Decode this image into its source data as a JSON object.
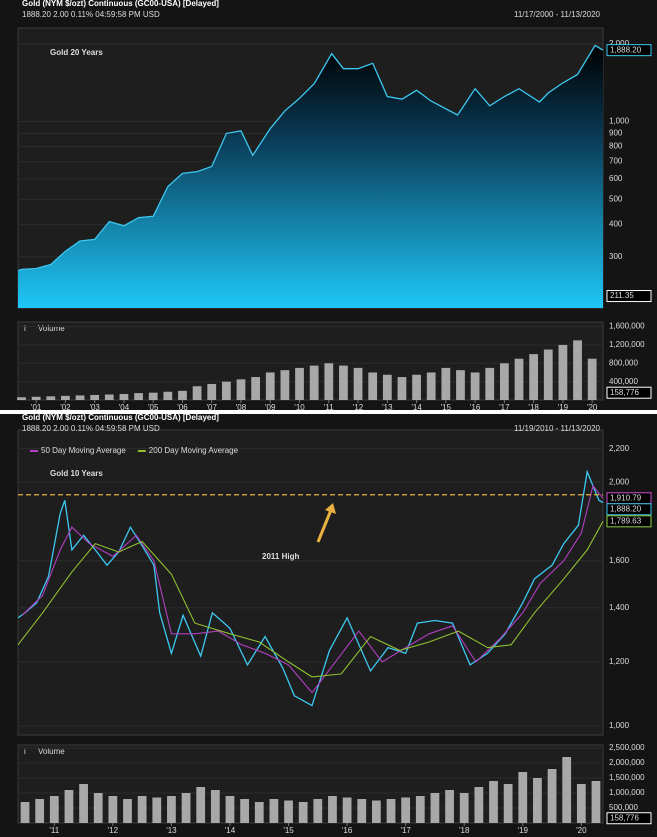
{
  "chart_data": [
    {
      "type": "area",
      "log": true,
      "grid": true,
      "header": {
        "name": "Gold (NYM $/ozt) Continuous (GC00-USA) [Delayed]",
        "quote": "1888.20   2.00   0.11%   04:59:58 PM   USD",
        "range": "11/17/2000 - 11/13/2020"
      },
      "title": "Gold 20 Years",
      "xlim": [
        2000.88,
        2020.87
      ],
      "xticks": [
        {
          "value": 2001.5,
          "label": "'01"
        },
        {
          "value": 2002.5,
          "label": "'02"
        },
        {
          "value": 2003.5,
          "label": "'03"
        },
        {
          "value": 2004.5,
          "label": "'04"
        },
        {
          "value": 2005.5,
          "label": "'05"
        },
        {
          "value": 2006.5,
          "label": "'06"
        },
        {
          "value": 2007.5,
          "label": "'07"
        },
        {
          "value": 2008.5,
          "label": "'08"
        },
        {
          "value": 2009.5,
          "label": "'09"
        },
        {
          "value": 2010.5,
          "label": "'10"
        },
        {
          "value": 2011.5,
          "label": "'11"
        },
        {
          "value": 2012.5,
          "label": "'12"
        },
        {
          "value": 2013.5,
          "label": "'13"
        },
        {
          "value": 2014.5,
          "label": "'14"
        },
        {
          "value": 2015.5,
          "label": "'15"
        },
        {
          "value": 2016.5,
          "label": "'16"
        },
        {
          "value": 2017.5,
          "label": "'17"
        },
        {
          "value": 2018.5,
          "label": "'18"
        },
        {
          "value": 2019.5,
          "label": "'19"
        },
        {
          "value": 2020.5,
          "label": "'20"
        }
      ],
      "ylim": [
        190,
        2300
      ],
      "yticks": [
        300,
        400,
        500,
        600,
        700,
        800,
        900,
        {
          "value": 1000,
          "label": "1,000"
        },
        {
          "value": 2000,
          "label": "2,000"
        }
      ],
      "series": [
        {
          "color": "#3cc8f0",
          "x": [
            2000.88,
            2001.0,
            2001.5,
            2002.0,
            2002.5,
            2003.0,
            2003.5,
            2004.0,
            2004.5,
            2005.0,
            2005.5,
            2006.0,
            2006.5,
            2007.0,
            2007.5,
            2008.0,
            2008.5,
            2008.9,
            2009.5,
            2010.0,
            2010.5,
            2011.0,
            2011.6,
            2012.0,
            2012.5,
            2013.0,
            2013.5,
            2014.0,
            2014.5,
            2015.0,
            2015.9,
            2016.5,
            2017.0,
            2017.5,
            2018.0,
            2018.7,
            2019.0,
            2019.5,
            2020.0,
            2020.6,
            2020.87
          ],
          "values": [
            265,
            268,
            270,
            280,
            315,
            345,
            350,
            410,
            395,
            425,
            430,
            560,
            630,
            640,
            670,
            900,
            920,
            740,
            940,
            1100,
            1230,
            1400,
            1830,
            1600,
            1600,
            1680,
            1250,
            1220,
            1320,
            1200,
            1060,
            1340,
            1150,
            1250,
            1340,
            1190,
            1290,
            1410,
            1520,
            1970,
            1888.2
          ]
        }
      ],
      "last_values": [
        {
          "value": 1888.2,
          "label": "1,888.20",
          "color": "#3cc8f0"
        },
        {
          "value": 211.35,
          "label": "211.35",
          "color": "#ffffff"
        }
      ],
      "volume": {
        "type": "bar",
        "label": "Volume",
        "color": "#a8a8a8",
        "x": [
          2001.0,
          2001.5,
          2002.0,
          2002.5,
          2003.0,
          2003.5,
          2004.0,
          2004.5,
          2005.0,
          2005.5,
          2006.0,
          2006.5,
          2007.0,
          2007.5,
          2008.0,
          2008.5,
          2009.0,
          2009.5,
          2010.0,
          2010.5,
          2011.0,
          2011.5,
          2012.0,
          2012.5,
          2013.0,
          2013.5,
          2014.0,
          2014.5,
          2015.0,
          2015.5,
          2016.0,
          2016.5,
          2017.0,
          2017.5,
          2018.0,
          2018.5,
          2019.0,
          2019.5,
          2020.0,
          2020.5
        ],
        "values": [
          60000,
          70000,
          80000,
          90000,
          100000,
          110000,
          120000,
          130000,
          150000,
          160000,
          180000,
          200000,
          300000,
          350000,
          400000,
          450000,
          500000,
          600000,
          650000,
          700000,
          750000,
          800000,
          750000,
          700000,
          600000,
          550000,
          500000,
          550000,
          600000,
          700000,
          650000,
          600000,
          700000,
          800000,
          900000,
          1000000,
          1100000,
          1200000,
          1300000,
          900000
        ],
        "ylim": [
          0,
          1700000
        ],
        "yticks": [
          {
            "value": 400000,
            "label": "400,000"
          },
          {
            "value": 800000,
            "label": "800,000"
          },
          {
            "value": 1200000,
            "label": "1,200,000"
          },
          {
            "value": 1600000,
            "label": "1,600,000"
          }
        ],
        "last_values": [
          {
            "value": 158776,
            "label": "158,776",
            "color": "#ffffff"
          }
        ]
      }
    },
    {
      "type": "line",
      "log": true,
      "grid": true,
      "header": {
        "name": "Gold (NYM $/ozt) Continuous (GC00-USA) [Delayed]",
        "quote": "1888.20   2.00   0.11%   04:59:58 PM   USD",
        "range": "11/19/2010 - 11/13/2020"
      },
      "title": "Gold 10 Years",
      "xlim": [
        2010.88,
        2020.87
      ],
      "xticks": [
        {
          "value": 2011.5,
          "label": "'11"
        },
        {
          "value": 2012.5,
          "label": "'12"
        },
        {
          "value": 2013.5,
          "label": "'13"
        },
        {
          "value": 2014.5,
          "label": "'14"
        },
        {
          "value": 2015.5,
          "label": "'15"
        },
        {
          "value": 2016.5,
          "label": "'16"
        },
        {
          "value": 2017.5,
          "label": "'17"
        },
        {
          "value": 2018.5,
          "label": "'18"
        },
        {
          "value": 2019.5,
          "label": "'19"
        },
        {
          "value": 2020.5,
          "label": "'20"
        }
      ],
      "ylim": [
        975,
        2320
      ],
      "yticks": [
        {
          "value": 1000,
          "label": "1,000"
        },
        {
          "value": 1200,
          "label": "1,200"
        },
        {
          "value": 1400,
          "label": "1,400"
        },
        {
          "value": 1600,
          "label": "1,600"
        },
        {
          "value": 2000,
          "label": "2,000"
        },
        {
          "value": 2200,
          "label": "2,200"
        }
      ],
      "reference_line": {
        "value": 1930,
        "label": "2011 High",
        "color": "#e8b040"
      },
      "series": [
        {
          "color": "#3cc8f0",
          "x": [
            2010.88,
            2011.0,
            2011.2,
            2011.4,
            2011.6,
            2011.68,
            2011.8,
            2012.0,
            2012.2,
            2012.4,
            2012.6,
            2012.8,
            2013.0,
            2013.2,
            2013.3,
            2013.5,
            2013.7,
            2014.0,
            2014.2,
            2014.5,
            2014.8,
            2015.1,
            2015.4,
            2015.6,
            2015.9,
            2016.2,
            2016.5,
            2016.9,
            2017.2,
            2017.5,
            2017.7,
            2018.0,
            2018.3,
            2018.6,
            2018.9,
            2019.2,
            2019.5,
            2019.7,
            2020.0,
            2020.2,
            2020.45,
            2020.6,
            2020.8,
            2020.87
          ],
          "values": [
            1360,
            1380,
            1420,
            1530,
            1830,
            1900,
            1650,
            1720,
            1650,
            1580,
            1640,
            1760,
            1670,
            1580,
            1380,
            1230,
            1370,
            1220,
            1380,
            1320,
            1190,
            1290,
            1180,
            1090,
            1060,
            1240,
            1360,
            1170,
            1250,
            1230,
            1340,
            1350,
            1340,
            1190,
            1230,
            1300,
            1420,
            1520,
            1580,
            1680,
            1770,
            2060,
            1900,
            1888.2
          ]
        },
        {
          "name": "50 Day Moving Average",
          "color": "#b040c0",
          "x": [
            2010.95,
            2011.3,
            2011.6,
            2011.8,
            2012.1,
            2012.5,
            2012.9,
            2013.2,
            2013.5,
            2013.9,
            2014.3,
            2014.7,
            2015.1,
            2015.5,
            2015.9,
            2016.3,
            2016.7,
            2017.1,
            2017.5,
            2017.9,
            2018.3,
            2018.7,
            2019.1,
            2019.5,
            2019.8,
            2020.2,
            2020.5,
            2020.7,
            2020.87
          ],
          "values": [
            1370,
            1450,
            1650,
            1760,
            1680,
            1620,
            1720,
            1600,
            1300,
            1300,
            1310,
            1260,
            1230,
            1190,
            1100,
            1200,
            1310,
            1200,
            1250,
            1300,
            1330,
            1200,
            1280,
            1380,
            1500,
            1600,
            1730,
            1980,
            1910.79
          ]
        },
        {
          "name": "200 Day Moving Average",
          "color": "#90c030",
          "x": [
            2010.88,
            2011.3,
            2011.8,
            2012.2,
            2012.6,
            2013.0,
            2013.5,
            2013.9,
            2014.5,
            2015.0,
            2015.5,
            2015.9,
            2016.4,
            2016.9,
            2017.4,
            2017.9,
            2018.4,
            2018.9,
            2019.3,
            2019.7,
            2020.2,
            2020.6,
            2020.87
          ],
          "values": [
            1260,
            1380,
            1550,
            1680,
            1640,
            1690,
            1540,
            1340,
            1300,
            1270,
            1200,
            1150,
            1160,
            1290,
            1240,
            1270,
            1310,
            1250,
            1260,
            1380,
            1520,
            1650,
            1789.63
          ]
        }
      ],
      "last_values": [
        {
          "value": 1910.79,
          "label": "1,910.79",
          "color": "#d050d0"
        },
        {
          "value": 1888.2,
          "label": "1,888.20",
          "color": "#3cc8f0"
        },
        {
          "value": 1789.63,
          "label": "1,789.63",
          "color": "#90d040"
        }
      ],
      "volume": {
        "type": "bar",
        "label": "Volume",
        "color": "#a8a8a8",
        "x": [
          2011.0,
          2011.25,
          2011.5,
          2011.75,
          2012.0,
          2012.25,
          2012.5,
          2012.75,
          2013.0,
          2013.25,
          2013.5,
          2013.75,
          2014.0,
          2014.25,
          2014.5,
          2014.75,
          2015.0,
          2015.25,
          2015.5,
          2015.75,
          2016.0,
          2016.25,
          2016.5,
          2016.75,
          2017.0,
          2017.25,
          2017.5,
          2017.75,
          2018.0,
          2018.25,
          2018.5,
          2018.75,
          2019.0,
          2019.25,
          2019.5,
          2019.75,
          2020.0,
          2020.25,
          2020.5,
          2020.75
        ],
        "values": [
          700000,
          800000,
          900000,
          1100000,
          1300000,
          1000000,
          900000,
          800000,
          900000,
          850000,
          900000,
          1000000,
          1200000,
          1100000,
          900000,
          800000,
          700000,
          800000,
          750000,
          700000,
          800000,
          900000,
          850000,
          800000,
          750000,
          800000,
          850000,
          900000,
          1000000,
          1100000,
          1000000,
          1200000,
          1400000,
          1300000,
          1700000,
          1500000,
          1800000,
          2200000,
          1300000,
          1400000
        ],
        "ylim": [
          0,
          2600000
        ],
        "yticks": [
          {
            "value": 500000,
            "label": "500,000"
          },
          {
            "value": 1000000,
            "label": "1,000,000"
          },
          {
            "value": 1500000,
            "label": "1,500,000"
          },
          {
            "value": 2000000,
            "label": "2,000,000"
          },
          {
            "value": 2500000,
            "label": "2,500,000"
          }
        ],
        "last_values": [
          {
            "value": 158776,
            "label": "158,776",
            "color": "#ffffff"
          }
        ]
      }
    }
  ]
}
